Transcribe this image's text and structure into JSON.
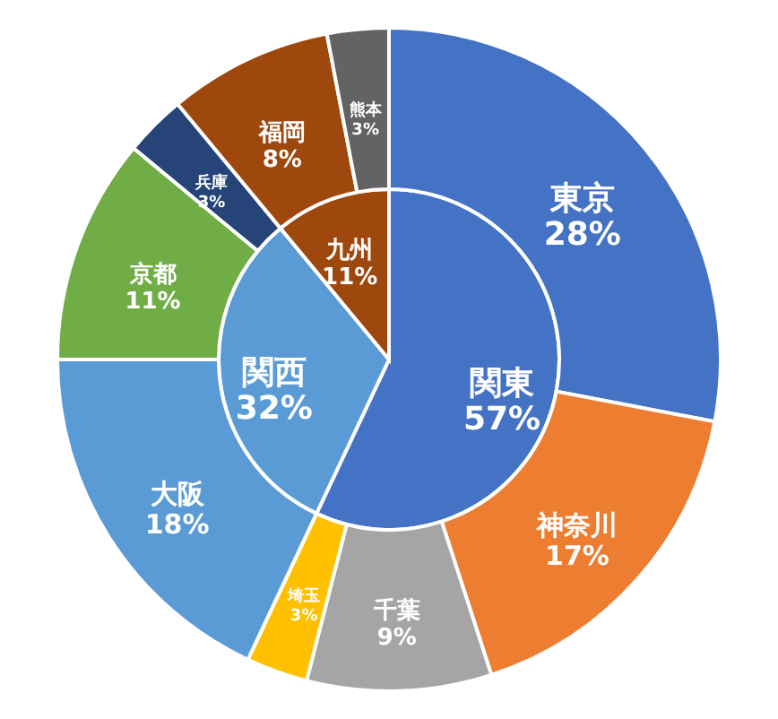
{
  "chart_data": [
    {
      "type": "pie",
      "categories": [
        "関東",
        "関西",
        "九州"
      ],
      "values": [
        57,
        32,
        11
      ],
      "value_labels": [
        "57%",
        "32%",
        "11%"
      ],
      "colors": [
        "#4472c4",
        "#5b9bd5",
        "#9e480e"
      ]
    },
    {
      "type": "donut",
      "categories": [
        "東京",
        "神奈川",
        "千葉",
        "埼玉",
        "大阪",
        "京都",
        "兵庫",
        "福岡",
        "熊本"
      ],
      "values": [
        28,
        17,
        9,
        3,
        18,
        11,
        3,
        8,
        3
      ],
      "value_labels": [
        "28%",
        "17%",
        "9%",
        "3%",
        "18%",
        "11%",
        "3%",
        "8%",
        "3%"
      ],
      "colors": [
        "#4472c4",
        "#ed7d31",
        "#a5a5a5",
        "#ffc000",
        "#5b9bd5",
        "#70ad47",
        "#264478",
        "#9e480e",
        "#636363"
      ]
    }
  ]
}
